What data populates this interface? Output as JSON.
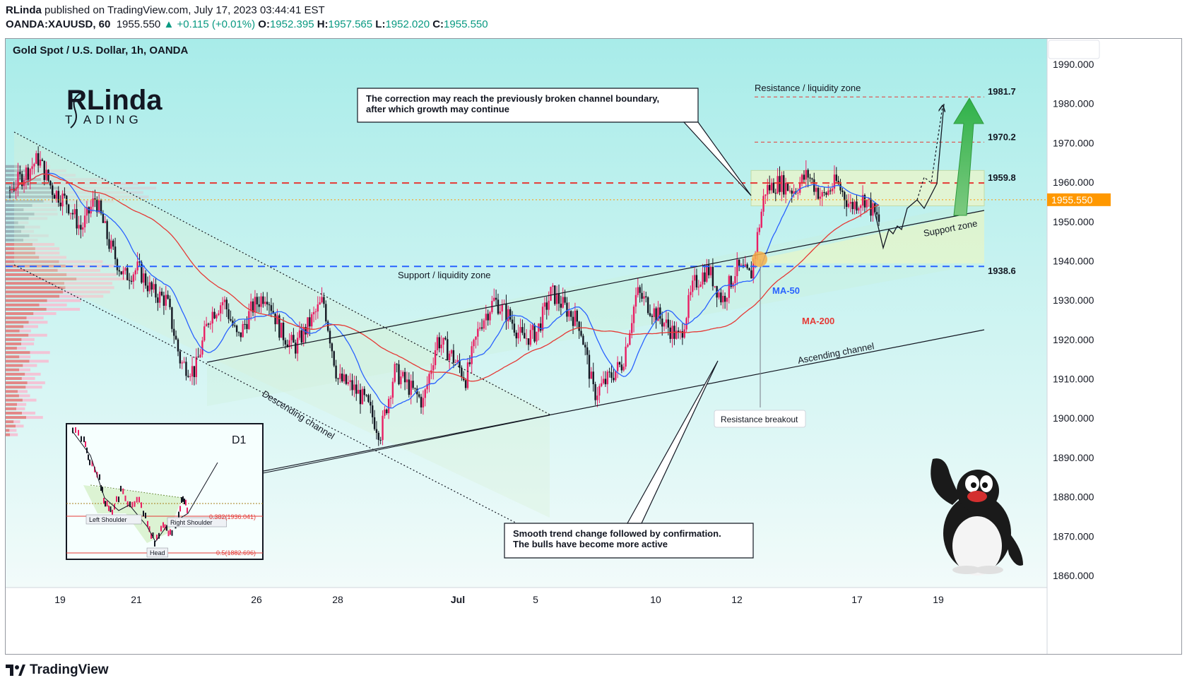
{
  "header": {
    "author": "RLinda",
    "published": "published on TradingView.com, July 17, 2023 03:44:41 EST",
    "symbol": "OANDA:XAUUSD, 60",
    "price": "1955.550",
    "change": "+0.115 (+0.01%)",
    "o_label": "O:",
    "o": "1952.395",
    "h_label": "H:",
    "h": "1957.565",
    "l_label": "L:",
    "l": "1952.020",
    "c_label": "C:",
    "c": "1955.550"
  },
  "chart_title": "Gold Spot / U.S. Dollar, 1h, OANDA",
  "logo": {
    "line1": "RLinda",
    "line2": "T  ADING"
  },
  "footer": {
    "brand": "TradingView"
  },
  "colors": {
    "bg_top": "#a8ece9",
    "bg_bottom": "#f2fbfa",
    "bull": "#e91e63",
    "bear": "#131722",
    "ma50": "#2962ff",
    "ma200": "#e53935",
    "arrow": "#4caf50"
  },
  "chart_data": {
    "type": "candlestick",
    "ylim": [
      1855,
      1997
    ],
    "y_ticks": [
      1990,
      1980,
      1970,
      1960,
      1950,
      1940,
      1930,
      1920,
      1910,
      1900,
      1890,
      1880,
      1870,
      1860
    ],
    "y_tick_labels": [
      "1990.000",
      "1980.000",
      "1970.000",
      "1960.000",
      "1950.000",
      "1940.000",
      "1930.000",
      "1920.000",
      "1910.000",
      "1900.000",
      "1890.000",
      "1880.000",
      "1870.000",
      "1860.000"
    ],
    "x_ticks": [
      "19",
      "21",
      "26",
      "28",
      "Jul",
      "5",
      "10",
      "12",
      "17",
      "19"
    ],
    "last_price": "1955.550",
    "levels": [
      {
        "label": "1981.7",
        "value": 1981.7
      },
      {
        "label": "1970.2",
        "value": 1970.2
      },
      {
        "label": "1959.8",
        "value": 1959.8
      },
      {
        "label": "1938.6",
        "value": 1938.6
      }
    ],
    "series": [
      {
        "name": "MA-50"
      },
      {
        "name": "MA-200"
      }
    ],
    "price_path": [
      1958,
      1962,
      1966,
      1958,
      1955,
      1948,
      1956,
      1944,
      1936,
      1938,
      1932,
      1930,
      1914,
      1912,
      1926,
      1930,
      1920,
      1928,
      1932,
      1922,
      1918,
      1924,
      1930,
      1910,
      1908,
      1904,
      1896,
      1912,
      1908,
      1904,
      1920,
      1916,
      1910,
      1924,
      1930,
      1926,
      1920,
      1922,
      1932,
      1928,
      1924,
      1906,
      1910,
      1914,
      1932,
      1928,
      1924,
      1920,
      1934,
      1938,
      1930,
      1938,
      1936,
      1958,
      1960,
      1958,
      1962,
      1956,
      1960,
      1954,
      1956,
      1950
    ],
    "annotations": {
      "top_note": "The correction may reach the previously broken channel boundary,\nafter which growth may continue",
      "bottom_note": "Smooth trend change followed by confirmation.\nThe bulls have become more active",
      "resistance_zone": "Resistance / liquidity zone",
      "support_liq": "Support / liquidity zone",
      "support_zone": "Support zone",
      "ma50": "MA-50",
      "ma200": "MA-200",
      "ascending": "Ascending channel",
      "descending": "Descending channel",
      "breakout": "Resistance breakout"
    },
    "inset": {
      "title": "D1",
      "left_shoulder": "Left Shoulder",
      "right_shoulder": "Right Shoulder",
      "head": "Head",
      "fib1": "0.382(1936.041)",
      "fib2": "0.5(1882.696)"
    }
  }
}
